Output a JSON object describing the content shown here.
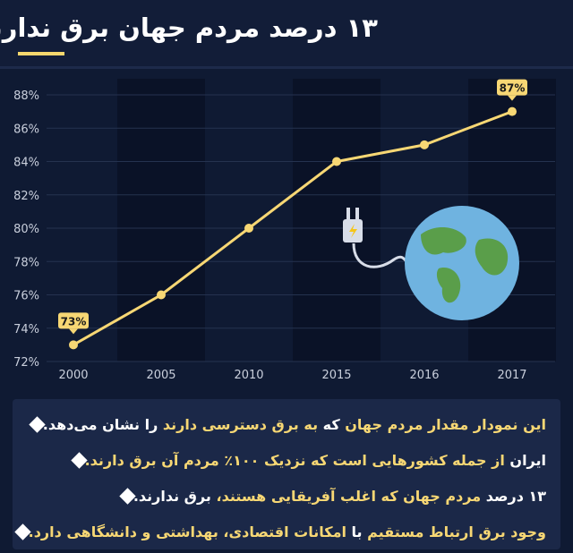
{
  "header": {
    "title": "۱۳ درصد مردم جهان برق ندارند"
  },
  "chart_data": {
    "type": "line",
    "title": "۱۳ درصد مردم جهان برق ندارند",
    "categories": [
      "2000",
      "2005",
      "2010",
      "2015",
      "2016",
      "2017"
    ],
    "values": [
      73,
      76,
      80,
      84,
      85,
      87
    ],
    "y_ticks": [
      "72%",
      "74%",
      "76%",
      "78%",
      "80%",
      "82%",
      "84%",
      "86%",
      "88%"
    ],
    "ylim": [
      72,
      88
    ],
    "data_labels": {
      "first": "73%",
      "last": "87%"
    },
    "grid": true,
    "line_color": "#f7d774"
  },
  "bullets": [
    {
      "parts": [
        {
          "t": "این نمودار مقدار مردم جهان ",
          "c": "y"
        },
        {
          "t": "که",
          "c": "w"
        },
        {
          "t": " به برق دسترسی دارند ",
          "c": "y"
        },
        {
          "t": "را نشان می‌دهد.",
          "c": "w"
        }
      ]
    },
    {
      "parts": [
        {
          "t": "ایران ",
          "c": "w"
        },
        {
          "t": "از جمله کشورهایی است که نزدیک ۱۰۰٪ مردم آن برق دارند.",
          "c": "y"
        }
      ]
    },
    {
      "parts": [
        {
          "t": "۱۳ درصد ",
          "c": "w"
        },
        {
          "t": "مردم جهان که اغلب آفریقایی هستند، ",
          "c": "y"
        },
        {
          "t": "برق ندارند.",
          "c": "w"
        }
      ]
    },
    {
      "parts": [
        {
          "t": "وجود برق ارتباط مستقیم ",
          "c": "y"
        },
        {
          "t": "با",
          "c": "w"
        },
        {
          "t": " امکانات اقتصادی، بهداشتی و دانشگاهی دارد.",
          "c": "y"
        }
      ]
    }
  ]
}
